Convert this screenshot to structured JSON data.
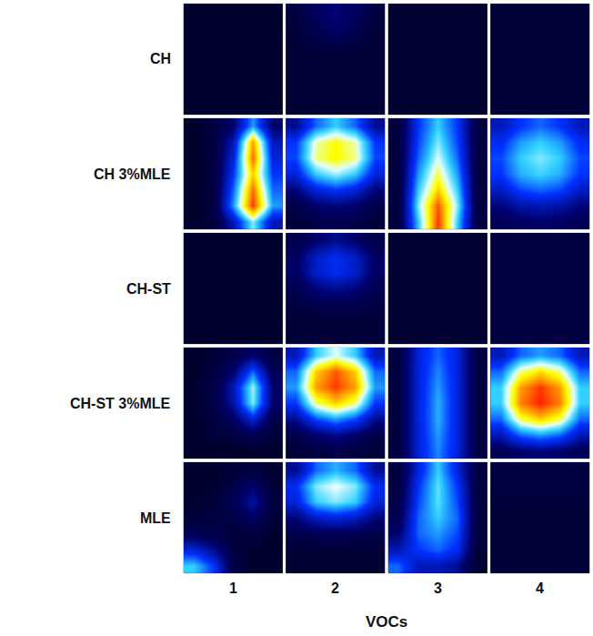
{
  "chart_data": {
    "type": "heatmap",
    "rows": [
      "CH",
      "CH 3%MLE",
      "CH-ST",
      "CH-ST 3%MLE",
      "MLE"
    ],
    "columns": [
      "1",
      "2",
      "3",
      "4"
    ],
    "x_label": "VOCs",
    "tick_labels": false,
    "zlim": [
      0,
      1
    ],
    "cells": [
      [
        [
          [
            0.05,
            0.05,
            0.05,
            0.05,
            0.05
          ],
          [
            0.05,
            0.05,
            0.05,
            0.05,
            0.05
          ],
          [
            0.05,
            0.05,
            0.05,
            0.05,
            0.05
          ],
          [
            0.05,
            0.05,
            0.05,
            0.05,
            0.05
          ],
          [
            0.05,
            0.05,
            0.05,
            0.05,
            0.05
          ],
          [
            0.05,
            0.05,
            0.05,
            0.05,
            0.05
          ],
          [
            0.05,
            0.05,
            0.05,
            0.05,
            0.05
          ]
        ],
        [
          [
            0.1,
            0.18,
            0.22,
            0.18,
            0.1
          ],
          [
            0.08,
            0.15,
            0.2,
            0.15,
            0.08
          ],
          [
            0.07,
            0.1,
            0.12,
            0.1,
            0.07
          ],
          [
            0.07,
            0.07,
            0.07,
            0.07,
            0.07
          ],
          [
            0.07,
            0.07,
            0.07,
            0.07,
            0.07
          ],
          [
            0.07,
            0.07,
            0.07,
            0.07,
            0.07
          ],
          [
            0.07,
            0.07,
            0.07,
            0.07,
            0.07
          ]
        ],
        [
          [
            0.06,
            0.06,
            0.06,
            0.06,
            0.06
          ],
          [
            0.06,
            0.06,
            0.06,
            0.06,
            0.06
          ],
          [
            0.06,
            0.06,
            0.06,
            0.06,
            0.06
          ],
          [
            0.06,
            0.06,
            0.06,
            0.06,
            0.06
          ],
          [
            0.06,
            0.06,
            0.06,
            0.06,
            0.06
          ],
          [
            0.06,
            0.06,
            0.06,
            0.06,
            0.06
          ],
          [
            0.06,
            0.06,
            0.06,
            0.06,
            0.06
          ]
        ],
        [
          [
            0.08,
            0.08,
            0.08,
            0.08,
            0.08
          ],
          [
            0.08,
            0.08,
            0.08,
            0.08,
            0.08
          ],
          [
            0.08,
            0.08,
            0.08,
            0.08,
            0.08
          ],
          [
            0.08,
            0.08,
            0.08,
            0.08,
            0.08
          ],
          [
            0.08,
            0.08,
            0.08,
            0.08,
            0.08
          ],
          [
            0.08,
            0.08,
            0.08,
            0.08,
            0.08
          ],
          [
            0.08,
            0.08,
            0.08,
            0.08,
            0.08
          ]
        ]
      ],
      [
        [
          [
            0.05,
            0.1,
            0.2,
            0.5,
            0.2
          ],
          [
            0.05,
            0.1,
            0.3,
            0.85,
            0.3
          ],
          [
            0.05,
            0.1,
            0.35,
            0.9,
            0.35
          ],
          [
            0.05,
            0.1,
            0.4,
            0.8,
            0.4
          ],
          [
            0.05,
            0.1,
            0.45,
            0.9,
            0.45
          ],
          [
            0.05,
            0.1,
            0.5,
            0.95,
            0.5
          ],
          [
            0.05,
            0.1,
            0.3,
            0.6,
            0.3
          ]
        ],
        [
          [
            0.25,
            0.45,
            0.55,
            0.45,
            0.25
          ],
          [
            0.4,
            0.68,
            0.75,
            0.68,
            0.4
          ],
          [
            0.42,
            0.7,
            0.76,
            0.7,
            0.42
          ],
          [
            0.35,
            0.55,
            0.62,
            0.55,
            0.35
          ],
          [
            0.22,
            0.35,
            0.4,
            0.35,
            0.22
          ],
          [
            0.12,
            0.2,
            0.22,
            0.2,
            0.12
          ],
          [
            0.08,
            0.12,
            0.14,
            0.12,
            0.08
          ]
        ],
        [
          [
            0.1,
            0.4,
            0.55,
            0.4,
            0.1
          ],
          [
            0.1,
            0.42,
            0.6,
            0.42,
            0.1
          ],
          [
            0.1,
            0.45,
            0.65,
            0.45,
            0.1
          ],
          [
            0.1,
            0.5,
            0.72,
            0.5,
            0.1
          ],
          [
            0.1,
            0.55,
            0.8,
            0.55,
            0.1
          ],
          [
            0.1,
            0.6,
            0.92,
            0.6,
            0.1
          ],
          [
            0.1,
            0.55,
            0.95,
            0.55,
            0.1
          ]
        ],
        [
          [
            0.3,
            0.4,
            0.45,
            0.4,
            0.3
          ],
          [
            0.38,
            0.5,
            0.55,
            0.5,
            0.38
          ],
          [
            0.42,
            0.55,
            0.6,
            0.55,
            0.42
          ],
          [
            0.4,
            0.52,
            0.56,
            0.52,
            0.4
          ],
          [
            0.32,
            0.42,
            0.45,
            0.42,
            0.32
          ],
          [
            0.22,
            0.28,
            0.3,
            0.28,
            0.22
          ],
          [
            0.15,
            0.18,
            0.2,
            0.18,
            0.15
          ]
        ]
      ],
      [
        [
          [
            0.05,
            0.05,
            0.05,
            0.05,
            0.05
          ],
          [
            0.05,
            0.05,
            0.05,
            0.05,
            0.05
          ],
          [
            0.05,
            0.05,
            0.05,
            0.05,
            0.05
          ],
          [
            0.05,
            0.05,
            0.05,
            0.05,
            0.05
          ],
          [
            0.05,
            0.05,
            0.05,
            0.05,
            0.05
          ],
          [
            0.05,
            0.05,
            0.05,
            0.05,
            0.05
          ],
          [
            0.05,
            0.05,
            0.05,
            0.05,
            0.05
          ]
        ],
        [
          [
            0.12,
            0.2,
            0.25,
            0.2,
            0.12
          ],
          [
            0.18,
            0.32,
            0.38,
            0.32,
            0.18
          ],
          [
            0.18,
            0.33,
            0.38,
            0.33,
            0.18
          ],
          [
            0.14,
            0.22,
            0.25,
            0.22,
            0.14
          ],
          [
            0.1,
            0.13,
            0.14,
            0.13,
            0.1
          ],
          [
            0.08,
            0.08,
            0.08,
            0.08,
            0.08
          ],
          [
            0.08,
            0.08,
            0.08,
            0.08,
            0.08
          ]
        ],
        [
          [
            0.06,
            0.06,
            0.06,
            0.06,
            0.06
          ],
          [
            0.06,
            0.06,
            0.06,
            0.06,
            0.06
          ],
          [
            0.06,
            0.06,
            0.06,
            0.06,
            0.06
          ],
          [
            0.06,
            0.06,
            0.06,
            0.06,
            0.06
          ],
          [
            0.06,
            0.06,
            0.06,
            0.06,
            0.06
          ],
          [
            0.06,
            0.06,
            0.06,
            0.06,
            0.06
          ],
          [
            0.06,
            0.06,
            0.06,
            0.06,
            0.06
          ]
        ],
        [
          [
            0.1,
            0.1,
            0.1,
            0.1,
            0.1
          ],
          [
            0.1,
            0.1,
            0.1,
            0.1,
            0.1
          ],
          [
            0.1,
            0.1,
            0.1,
            0.1,
            0.1
          ],
          [
            0.1,
            0.1,
            0.1,
            0.1,
            0.1
          ],
          [
            0.1,
            0.1,
            0.1,
            0.1,
            0.1
          ],
          [
            0.1,
            0.1,
            0.1,
            0.1,
            0.1
          ],
          [
            0.1,
            0.1,
            0.1,
            0.1,
            0.1
          ]
        ]
      ],
      [
        [
          [
            0.05,
            0.08,
            0.12,
            0.2,
            0.1
          ],
          [
            0.05,
            0.1,
            0.2,
            0.45,
            0.15
          ],
          [
            0.05,
            0.12,
            0.3,
            0.62,
            0.2
          ],
          [
            0.05,
            0.12,
            0.28,
            0.6,
            0.2
          ],
          [
            0.05,
            0.1,
            0.18,
            0.35,
            0.12
          ],
          [
            0.05,
            0.08,
            0.1,
            0.15,
            0.08
          ],
          [
            0.05,
            0.05,
            0.05,
            0.05,
            0.05
          ]
        ],
        [
          [
            0.3,
            0.55,
            0.65,
            0.55,
            0.3
          ],
          [
            0.45,
            0.8,
            0.92,
            0.8,
            0.45
          ],
          [
            0.5,
            0.85,
            0.95,
            0.85,
            0.5
          ],
          [
            0.4,
            0.7,
            0.8,
            0.7,
            0.4
          ],
          [
            0.25,
            0.42,
            0.5,
            0.42,
            0.25
          ],
          [
            0.12,
            0.2,
            0.24,
            0.2,
            0.12
          ],
          [
            0.08,
            0.1,
            0.12,
            0.1,
            0.08
          ]
        ],
        [
          [
            0.1,
            0.35,
            0.45,
            0.35,
            0.1
          ],
          [
            0.1,
            0.35,
            0.48,
            0.35,
            0.1
          ],
          [
            0.1,
            0.35,
            0.5,
            0.35,
            0.1
          ],
          [
            0.1,
            0.35,
            0.52,
            0.35,
            0.1
          ],
          [
            0.1,
            0.35,
            0.52,
            0.35,
            0.1
          ],
          [
            0.1,
            0.35,
            0.5,
            0.35,
            0.1
          ],
          [
            0.1,
            0.35,
            0.48,
            0.35,
            0.1
          ]
        ],
        [
          [
            0.3,
            0.45,
            0.5,
            0.45,
            0.3
          ],
          [
            0.45,
            0.7,
            0.78,
            0.7,
            0.45
          ],
          [
            0.55,
            0.85,
            0.95,
            0.85,
            0.55
          ],
          [
            0.55,
            0.88,
            0.97,
            0.88,
            0.55
          ],
          [
            0.45,
            0.72,
            0.8,
            0.72,
            0.45
          ],
          [
            0.3,
            0.45,
            0.5,
            0.45,
            0.3
          ],
          [
            0.15,
            0.2,
            0.22,
            0.2,
            0.15
          ]
        ]
      ],
      [
        [
          [
            0.05,
            0.05,
            0.08,
            0.1,
            0.06
          ],
          [
            0.05,
            0.06,
            0.12,
            0.2,
            0.08
          ],
          [
            0.06,
            0.08,
            0.15,
            0.28,
            0.1
          ],
          [
            0.08,
            0.1,
            0.12,
            0.18,
            0.08
          ],
          [
            0.15,
            0.12,
            0.08,
            0.1,
            0.06
          ],
          [
            0.35,
            0.25,
            0.1,
            0.06,
            0.05
          ],
          [
            0.55,
            0.4,
            0.12,
            0.05,
            0.05
          ]
        ],
        [
          [
            0.25,
            0.45,
            0.52,
            0.45,
            0.25
          ],
          [
            0.38,
            0.6,
            0.66,
            0.6,
            0.38
          ],
          [
            0.35,
            0.55,
            0.6,
            0.55,
            0.35
          ],
          [
            0.22,
            0.32,
            0.35,
            0.32,
            0.22
          ],
          [
            0.12,
            0.15,
            0.16,
            0.15,
            0.12
          ],
          [
            0.08,
            0.08,
            0.08,
            0.08,
            0.08
          ],
          [
            0.06,
            0.06,
            0.06,
            0.06,
            0.06
          ]
        ],
        [
          [
            0.1,
            0.35,
            0.55,
            0.35,
            0.1
          ],
          [
            0.1,
            0.4,
            0.58,
            0.4,
            0.1
          ],
          [
            0.12,
            0.42,
            0.58,
            0.42,
            0.1
          ],
          [
            0.15,
            0.45,
            0.55,
            0.45,
            0.1
          ],
          [
            0.2,
            0.45,
            0.5,
            0.42,
            0.1
          ],
          [
            0.3,
            0.4,
            0.45,
            0.38,
            0.08
          ],
          [
            0.45,
            0.3,
            0.3,
            0.25,
            0.06
          ]
        ],
        [
          [
            0.1,
            0.1,
            0.1,
            0.1,
            0.1
          ],
          [
            0.1,
            0.1,
            0.1,
            0.1,
            0.1
          ],
          [
            0.08,
            0.08,
            0.08,
            0.08,
            0.08
          ],
          [
            0.08,
            0.08,
            0.08,
            0.08,
            0.08
          ],
          [
            0.08,
            0.08,
            0.08,
            0.08,
            0.08
          ],
          [
            0.08,
            0.08,
            0.08,
            0.08,
            0.08
          ],
          [
            0.08,
            0.08,
            0.08,
            0.08,
            0.08
          ]
        ]
      ]
    ]
  }
}
